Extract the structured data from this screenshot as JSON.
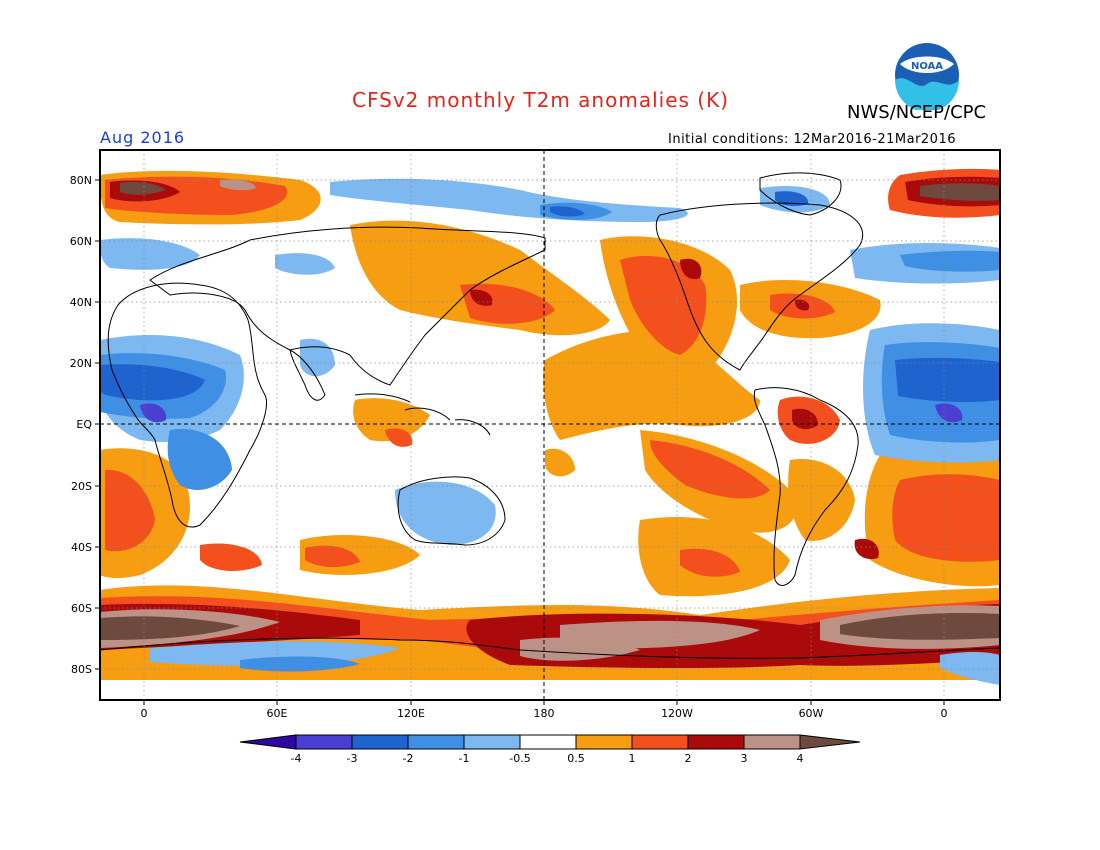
{
  "title": "CFSv2 monthly T2m anomalies (K)",
  "agency": "NWS/NCEP/CPC",
  "logo_text": "NOAA",
  "valid_month": "Aug 2016",
  "initial_conditions": "Initial conditions: 12Mar2016-21Mar2016",
  "y_ticks": [
    "80N",
    "60N",
    "40N",
    "20N",
    "EQ",
    "20S",
    "40S",
    "60S",
    "80S"
  ],
  "x_ticks": [
    "0",
    "60E",
    "120E",
    "180",
    "120W",
    "60W",
    "0"
  ],
  "colorbar": {
    "labels": [
      "-4",
      "-3",
      "-2",
      "-1",
      "-0.5",
      "0.5",
      "1",
      "2",
      "3",
      "4"
    ],
    "colors": [
      "#2d09a4",
      "#4a3fd0",
      "#1f63cf",
      "#3f8fe4",
      "#7db8f0",
      "#ffffff",
      "#f79d11",
      "#f4501e",
      "#ab0a0a",
      "#bc9286",
      "#6e4a3e"
    ]
  },
  "colors": {
    "title": "#e8231b",
    "month": "#1a3dd8",
    "land_outline": "#000000"
  }
}
